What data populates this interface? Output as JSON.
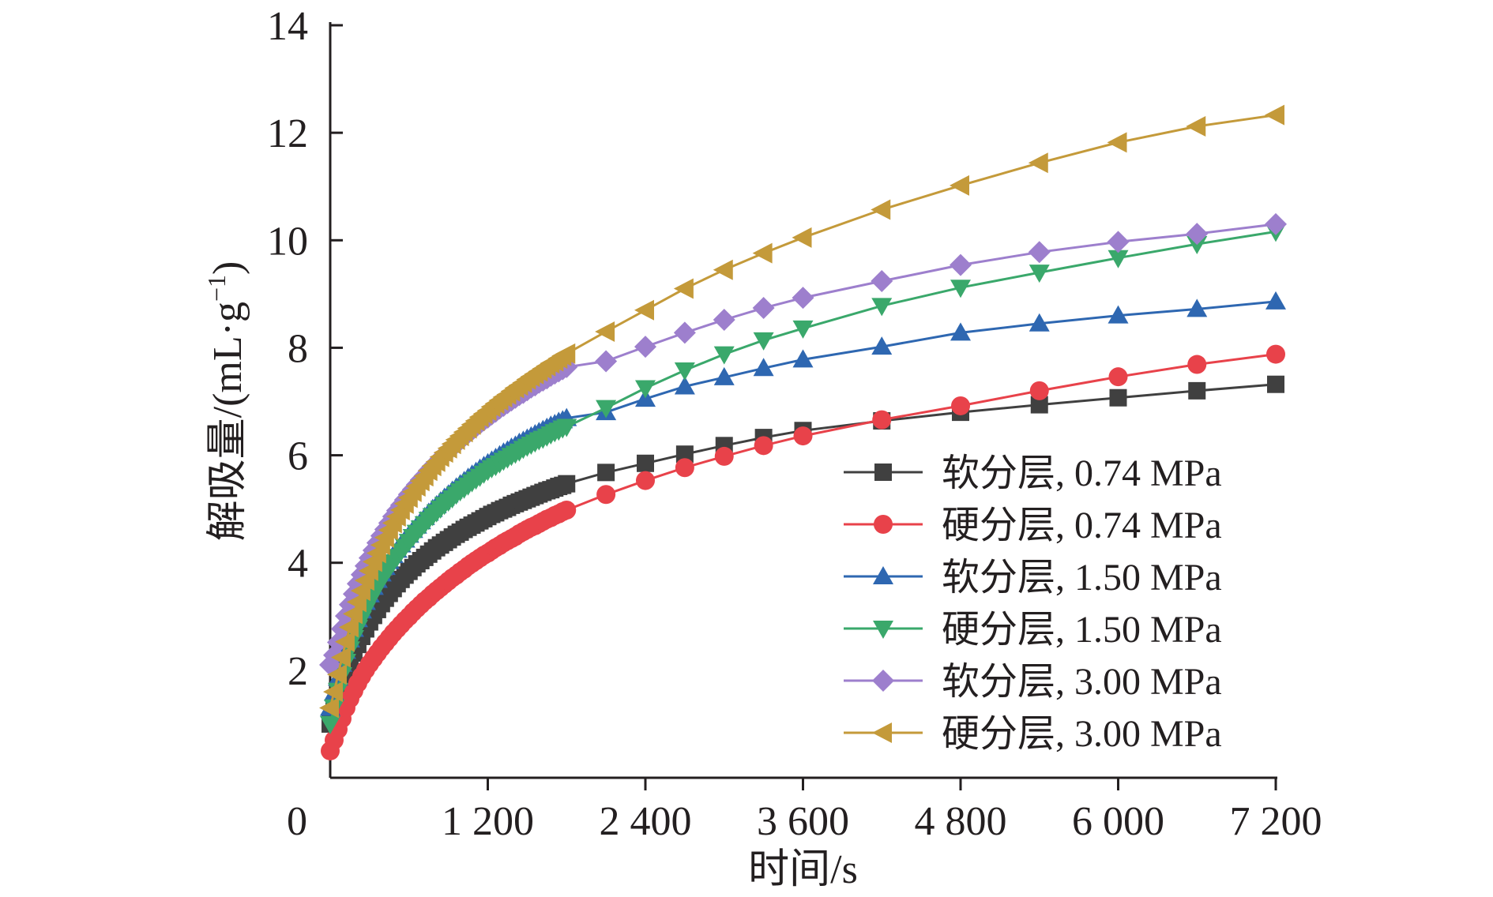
{
  "chart_data": {
    "type": "line",
    "title": "",
    "xlabel": "时间/s",
    "ylabel_main": "解吸量/(mL·g",
    "ylabel_sup": "−1",
    "ylabel_close": ")",
    "xlim": [
      0,
      7200
    ],
    "ylim": [
      0,
      14
    ],
    "x_ticks": [
      0,
      1200,
      2400,
      3600,
      4800,
      6000,
      7200
    ],
    "x_tick_labels": [
      "0",
      "1 200",
      "2 400",
      "3 600",
      "4 800",
      "6 000",
      "7 200"
    ],
    "y_ticks": [
      2,
      4,
      6,
      8,
      10,
      12,
      14
    ],
    "y_tick_labels": [
      "2",
      "4",
      "6",
      "8",
      "10",
      "12",
      "14"
    ],
    "grid": false,
    "legend_position": "bottom-right",
    "series": [
      {
        "name": "软分层, 0.74 MPa",
        "color": "#404040",
        "marker": "square",
        "x": [
          0,
          30,
          60,
          90,
          120,
          150,
          180,
          210,
          240,
          270,
          300,
          330,
          360,
          390,
          420,
          450,
          480,
          510,
          540,
          570,
          600,
          630,
          660,
          690,
          720,
          750,
          780,
          810,
          840,
          870,
          900,
          930,
          960,
          990,
          1020,
          1050,
          1080,
          1110,
          1140,
          1170,
          1200,
          1230,
          1260,
          1290,
          1320,
          1350,
          1380,
          1410,
          1440,
          1470,
          1500,
          1530,
          1560,
          1590,
          1620,
          1650,
          1680,
          1710,
          1740,
          1770,
          1800,
          2100,
          2400,
          2700,
          3000,
          3300,
          3600,
          4200,
          4800,
          5400,
          6000,
          6600,
          7200
        ],
        "values": [
          1.0,
          1.24,
          1.49,
          1.73,
          1.94,
          2.14,
          2.32,
          2.48,
          2.63,
          2.77,
          2.9,
          3.02,
          3.13,
          3.24,
          3.34,
          3.43,
          3.52,
          3.61,
          3.69,
          3.77,
          3.84,
          3.91,
          3.98,
          4.04,
          4.1,
          4.16,
          4.22,
          4.28,
          4.33,
          4.38,
          4.43,
          4.48,
          4.53,
          4.57,
          4.62,
          4.66,
          4.7,
          4.74,
          4.78,
          4.82,
          4.86,
          4.9,
          4.93,
          4.97,
          5.0,
          5.03,
          5.07,
          5.1,
          5.13,
          5.16,
          5.19,
          5.22,
          5.25,
          5.28,
          5.31,
          5.34,
          5.36,
          5.39,
          5.42,
          5.44,
          5.47,
          5.68,
          5.85,
          6.02,
          6.18,
          6.33,
          6.46,
          6.64,
          6.8,
          6.94,
          7.07,
          7.2,
          7.32
        ]
      },
      {
        "name": "硬分层, 0.74 MPa",
        "color": "#e8424a",
        "marker": "circle",
        "x": [
          0,
          30,
          60,
          90,
          120,
          150,
          180,
          210,
          240,
          270,
          300,
          330,
          360,
          390,
          420,
          450,
          480,
          510,
          540,
          570,
          600,
          630,
          660,
          690,
          720,
          750,
          780,
          810,
          840,
          870,
          900,
          930,
          960,
          990,
          1020,
          1050,
          1080,
          1110,
          1140,
          1170,
          1200,
          1230,
          1260,
          1290,
          1320,
          1350,
          1380,
          1410,
          1440,
          1470,
          1500,
          1530,
          1560,
          1590,
          1620,
          1650,
          1680,
          1710,
          1740,
          1770,
          1800,
          2100,
          2400,
          2700,
          3000,
          3300,
          3600,
          4200,
          4800,
          5400,
          6000,
          6600,
          7200
        ],
        "values": [
          0.5,
          0.7,
          0.9,
          1.1,
          1.3,
          1.47,
          1.62,
          1.76,
          1.89,
          2.01,
          2.12,
          2.22,
          2.32,
          2.42,
          2.51,
          2.6,
          2.69,
          2.77,
          2.85,
          2.93,
          3.0,
          3.08,
          3.15,
          3.22,
          3.29,
          3.35,
          3.42,
          3.48,
          3.54,
          3.6,
          3.66,
          3.72,
          3.77,
          3.83,
          3.88,
          3.94,
          3.99,
          4.04,
          4.09,
          4.14,
          4.18,
          4.23,
          4.28,
          4.32,
          4.37,
          4.41,
          4.45,
          4.49,
          4.54,
          4.58,
          4.62,
          4.66,
          4.69,
          4.73,
          4.77,
          4.81,
          4.84,
          4.88,
          4.91,
          4.95,
          4.98,
          5.27,
          5.53,
          5.77,
          5.98,
          6.18,
          6.36,
          6.66,
          6.92,
          7.2,
          7.46,
          7.69,
          7.88
        ]
      },
      {
        "name": "软分层, 1.50 MPa",
        "color": "#2e67b1",
        "marker": "triangle-up",
        "x": [
          0,
          30,
          60,
          90,
          120,
          150,
          180,
          210,
          240,
          270,
          300,
          330,
          360,
          390,
          420,
          450,
          480,
          510,
          540,
          570,
          600,
          630,
          660,
          690,
          720,
          750,
          780,
          810,
          840,
          870,
          900,
          930,
          960,
          990,
          1020,
          1050,
          1080,
          1110,
          1140,
          1170,
          1200,
          1230,
          1260,
          1290,
          1320,
          1350,
          1380,
          1410,
          1440,
          1470,
          1500,
          1530,
          1560,
          1590,
          1620,
          1650,
          1680,
          1710,
          1740,
          1770,
          1800,
          2100,
          2400,
          2700,
          3000,
          3300,
          3600,
          4200,
          4800,
          5400,
          6000,
          6600,
          7200
        ],
        "values": [
          1.3,
          1.58,
          1.86,
          2.12,
          2.36,
          2.57,
          2.77,
          2.95,
          3.11,
          3.27,
          3.41,
          3.55,
          3.68,
          3.8,
          3.92,
          4.03,
          4.14,
          4.24,
          4.34,
          4.43,
          4.52,
          4.61,
          4.69,
          4.77,
          4.85,
          4.93,
          5.0,
          5.07,
          5.14,
          5.21,
          5.27,
          5.34,
          5.4,
          5.46,
          5.52,
          5.58,
          5.64,
          5.69,
          5.75,
          5.8,
          5.85,
          5.9,
          5.95,
          6.0,
          6.05,
          6.09,
          6.14,
          6.18,
          6.23,
          6.27,
          6.31,
          6.35,
          6.39,
          6.43,
          6.47,
          6.51,
          6.55,
          6.58,
          6.62,
          6.65,
          6.69,
          6.8,
          7.05,
          7.28,
          7.45,
          7.62,
          7.78,
          8.02,
          8.28,
          8.45,
          8.6,
          8.72,
          8.86
        ]
      },
      {
        "name": "硬分层, 1.50 MPa",
        "color": "#3aa86b",
        "marker": "triangle-down",
        "x": [
          0,
          30,
          60,
          90,
          120,
          150,
          180,
          210,
          240,
          270,
          300,
          330,
          360,
          390,
          420,
          450,
          480,
          510,
          540,
          570,
          600,
          630,
          660,
          690,
          720,
          750,
          780,
          810,
          840,
          870,
          900,
          930,
          960,
          990,
          1020,
          1050,
          1080,
          1110,
          1140,
          1170,
          1200,
          1230,
          1260,
          1290,
          1320,
          1350,
          1380,
          1410,
          1440,
          1470,
          1500,
          1530,
          1560,
          1590,
          1620,
          1650,
          1680,
          1710,
          1740,
          1770,
          1800,
          2100,
          2400,
          2700,
          3000,
          3300,
          3600,
          4200,
          4800,
          5400,
          6000,
          6600,
          7200
        ],
        "values": [
          1.0,
          1.31,
          1.62,
          1.91,
          2.16,
          2.39,
          2.6,
          2.79,
          2.96,
          3.12,
          3.27,
          3.41,
          3.54,
          3.67,
          3.79,
          3.9,
          4.01,
          4.11,
          4.21,
          4.3,
          4.39,
          4.48,
          4.56,
          4.64,
          4.72,
          4.8,
          4.87,
          4.94,
          5.01,
          5.08,
          5.14,
          5.2,
          5.27,
          5.33,
          5.38,
          5.44,
          5.5,
          5.55,
          5.6,
          5.66,
          5.71,
          5.76,
          5.8,
          5.85,
          5.9,
          5.94,
          5.99,
          6.03,
          6.07,
          6.12,
          6.16,
          6.2,
          6.24,
          6.28,
          6.31,
          6.35,
          6.39,
          6.43,
          6.46,
          6.5,
          6.53,
          6.88,
          7.25,
          7.58,
          7.88,
          8.14,
          8.36,
          8.78,
          9.12,
          9.4,
          9.67,
          9.93,
          10.16
        ]
      },
      {
        "name": "软分层, 3.00 MPa",
        "color": "#9d7fcd",
        "marker": "diamond",
        "x": [
          0,
          30,
          60,
          90,
          120,
          150,
          180,
          210,
          240,
          270,
          300,
          330,
          360,
          390,
          420,
          450,
          480,
          510,
          540,
          570,
          600,
          630,
          660,
          690,
          720,
          750,
          780,
          810,
          840,
          870,
          900,
          930,
          960,
          990,
          1020,
          1050,
          1080,
          1110,
          1140,
          1170,
          1200,
          1230,
          1260,
          1290,
          1320,
          1350,
          1380,
          1410,
          1440,
          1470,
          1500,
          1530,
          1560,
          1590,
          1620,
          1650,
          1680,
          1710,
          1740,
          1770,
          1800,
          2100,
          2400,
          2700,
          3000,
          3300,
          3600,
          4200,
          4800,
          5400,
          6000,
          6600,
          7200
        ],
        "values": [
          2.1,
          2.28,
          2.52,
          2.77,
          3.01,
          3.22,
          3.42,
          3.61,
          3.78,
          3.94,
          4.09,
          4.23,
          4.37,
          4.5,
          4.62,
          4.74,
          4.86,
          4.97,
          5.07,
          5.17,
          5.27,
          5.36,
          5.45,
          5.54,
          5.62,
          5.71,
          5.79,
          5.86,
          5.94,
          6.01,
          6.08,
          6.15,
          6.22,
          6.28,
          6.35,
          6.41,
          6.47,
          6.53,
          6.59,
          6.65,
          6.7,
          6.76,
          6.81,
          6.87,
          6.92,
          6.97,
          7.02,
          7.07,
          7.12,
          7.16,
          7.21,
          7.26,
          7.3,
          7.35,
          7.39,
          7.43,
          7.48,
          7.52,
          7.56,
          7.6,
          7.64,
          7.75,
          8.02,
          8.28,
          8.52,
          8.74,
          8.93,
          9.24,
          9.54,
          9.78,
          9.97,
          10.12,
          10.3
        ]
      },
      {
        "name": "硬分层, 3.00 MPa",
        "color": "#c49a3a",
        "marker": "triangle-left",
        "x": [
          0,
          30,
          60,
          90,
          120,
          150,
          180,
          210,
          240,
          270,
          300,
          330,
          360,
          390,
          420,
          450,
          480,
          510,
          540,
          570,
          600,
          630,
          660,
          690,
          720,
          750,
          780,
          810,
          840,
          870,
          900,
          930,
          960,
          990,
          1020,
          1050,
          1080,
          1110,
          1140,
          1170,
          1200,
          1230,
          1260,
          1290,
          1320,
          1350,
          1380,
          1410,
          1440,
          1470,
          1500,
          1530,
          1560,
          1590,
          1620,
          1650,
          1680,
          1710,
          1740,
          1770,
          1800,
          2100,
          2400,
          2700,
          3000,
          3300,
          3600,
          4200,
          4800,
          5400,
          6000,
          6600,
          7200
        ],
        "values": [
          1.3,
          1.6,
          1.92,
          2.24,
          2.53,
          2.8,
          3.05,
          3.27,
          3.48,
          3.67,
          3.85,
          4.02,
          4.18,
          4.33,
          4.47,
          4.61,
          4.74,
          4.86,
          4.98,
          5.1,
          5.21,
          5.32,
          5.42,
          5.52,
          5.61,
          5.71,
          5.8,
          5.88,
          5.97,
          6.05,
          6.13,
          6.21,
          6.29,
          6.36,
          6.43,
          6.5,
          6.57,
          6.64,
          6.71,
          6.77,
          6.83,
          6.9,
          6.96,
          7.02,
          7.08,
          7.13,
          7.19,
          7.25,
          7.3,
          7.35,
          7.41,
          7.46,
          7.51,
          7.56,
          7.61,
          7.66,
          7.71,
          7.75,
          7.8,
          7.85,
          7.89,
          8.3,
          8.7,
          9.1,
          9.45,
          9.76,
          10.05,
          10.57,
          11.02,
          11.44,
          11.82,
          12.12,
          12.33
        ]
      }
    ]
  }
}
